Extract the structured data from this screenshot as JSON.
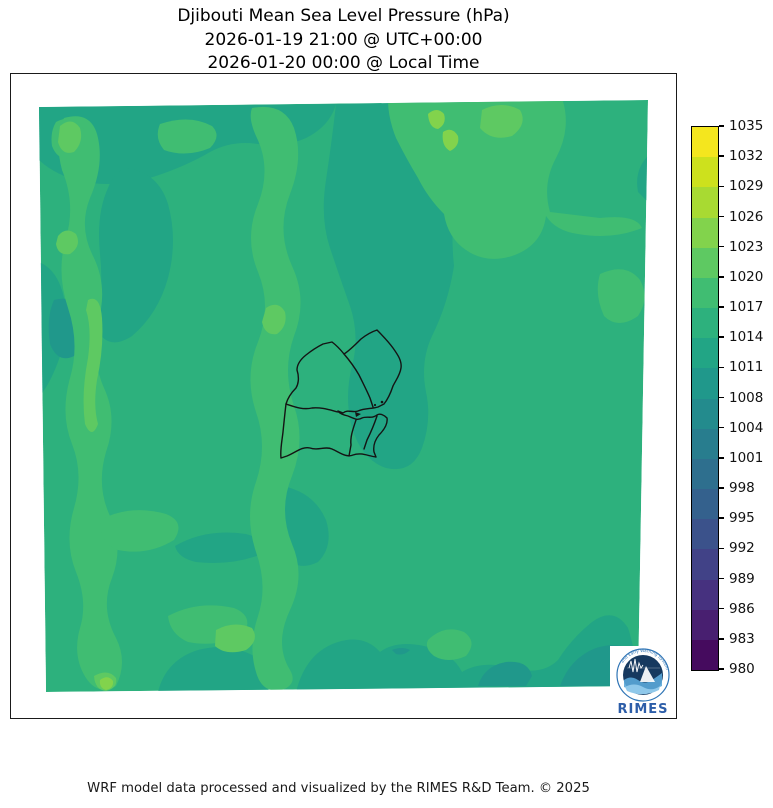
{
  "figure": {
    "title_line1": "Djibouti Mean Sea Level Pressure (hPa)",
    "title_line2": "2026-01-19 21:00 @ UTC+00:00",
    "title_line3": "2026-01-20 00:00 @ Local Time",
    "footer_credit": "WRF model data processed and visualized by the RIMES R&D Team. © 2025"
  },
  "colorbar": {
    "tick_labels_top_to_bottom": [
      "1035",
      "1032",
      "1029",
      "1026",
      "1023",
      "1020",
      "1017",
      "1014",
      "1011",
      "1008",
      "1004",
      "1001",
      "998",
      "995",
      "992",
      "989",
      "986",
      "983",
      "980"
    ],
    "segment_colors_bottom_to_top": [
      "#450b5e",
      "#481f70",
      "#46317f",
      "#414287",
      "#3b528b",
      "#34618d",
      "#2e6f8e",
      "#287d8e",
      "#238b8d",
      "#20988b",
      "#22a585",
      "#2db17d",
      "#40bd72",
      "#5ec962",
      "#82d34c",
      "#a8da32",
      "#cde11d",
      "#f4e61e"
    ],
    "outline_color": "#000000"
  },
  "map": {
    "fills": {
      "base": "#2db17d",
      "teal": "#22a585",
      "deep_teal": "#20988b",
      "ridge": "#40bd72",
      "light": "#5ec962",
      "lightest": "#82d34c"
    },
    "boundary_color": "#141414"
  },
  "logo": {
    "wordmark": "RIMES",
    "arc_text": "and Early Warning System",
    "ring_color": "#2e74b5",
    "globe_color": "#16395f",
    "wave_color": "#5aa7d8",
    "wordmark_color": "#2c5da8"
  },
  "chart_data": {
    "type": "heatmap",
    "title": "Djibouti Mean Sea Level Pressure (hPa)",
    "valid_time_utc": "2026-01-19 21:00 @ UTC+00:00",
    "valid_time_local": "2026-01-20 00:00 @ Local Time",
    "variable": "Mean Sea Level Pressure",
    "unit": "hPa",
    "colormap": "viridis",
    "legend_position": "right-vertical",
    "scale_range": [
      980,
      1035
    ],
    "colorbar_ticks": [
      980,
      983,
      986,
      989,
      992,
      995,
      998,
      1001,
      1004,
      1008,
      1011,
      1014,
      1017,
      1020,
      1023,
      1026,
      1029,
      1032,
      1035
    ],
    "contour_interval_hpa": 3.06,
    "value_range_shown_estimate": [
      1005,
      1026
    ],
    "field_description": "Mostly 1011-1017 hPa over the domain; higher pressure bands (1017-1026 hPa) along the western side and a ridge near top-center; lower pressure (1008-1011 hPa) in central snake, bottom-center and bottom-right patches",
    "overlay": "Djibouti national outline with regional administrative boundaries",
    "source_note": "WRF model data processed and visualized by the RIMES R&D Team. © 2025"
  }
}
